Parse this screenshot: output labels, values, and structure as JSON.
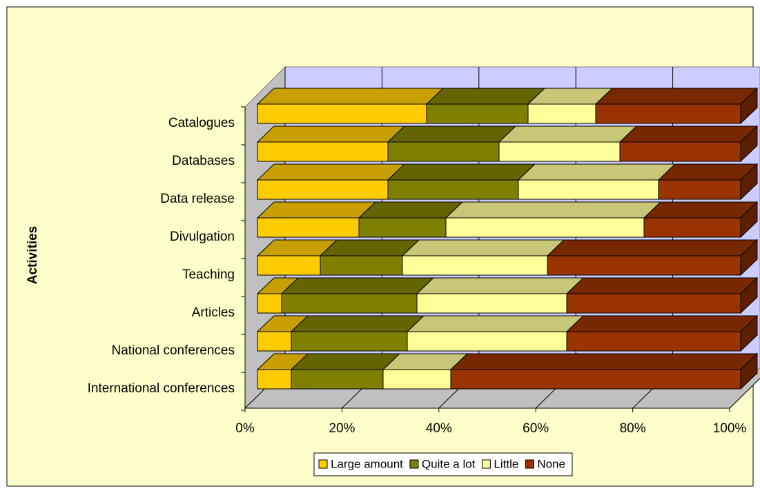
{
  "chart_data": {
    "type": "bar3d_stacked_horizontal",
    "y_label": "Activities",
    "categories": [
      "Catalogues",
      "Databases",
      "Data release",
      "Divulgation",
      "Teaching",
      "Articles",
      "National conferences",
      "International conferences"
    ],
    "series": [
      {
        "name": "Large amount",
        "color": "#FFCC00",
        "values": [
          35,
          27,
          27,
          21,
          13,
          5,
          7,
          7
        ]
      },
      {
        "name": "Quite a lot",
        "color": "#808000",
        "values": [
          21,
          23,
          27,
          18,
          17,
          28,
          24,
          19
        ]
      },
      {
        "name": "Little",
        "color": "#FFFF99",
        "values": [
          14,
          25,
          29,
          41,
          30,
          31,
          33,
          14
        ]
      },
      {
        "name": "None",
        "color": "#993300",
        "values": [
          30,
          25,
          17,
          20,
          40,
          36,
          36,
          60
        ]
      }
    ],
    "xlim": [
      0,
      100
    ],
    "xticks": [
      {
        "value": 0,
        "label": "0%"
      },
      {
        "value": 20,
        "label": "20%"
      },
      {
        "value": 40,
        "label": "40%"
      },
      {
        "value": 60,
        "label": "60%"
      },
      {
        "value": 80,
        "label": "80%"
      },
      {
        "value": 100,
        "label": "100%"
      }
    ],
    "grid": true,
    "legend": "bottom"
  }
}
